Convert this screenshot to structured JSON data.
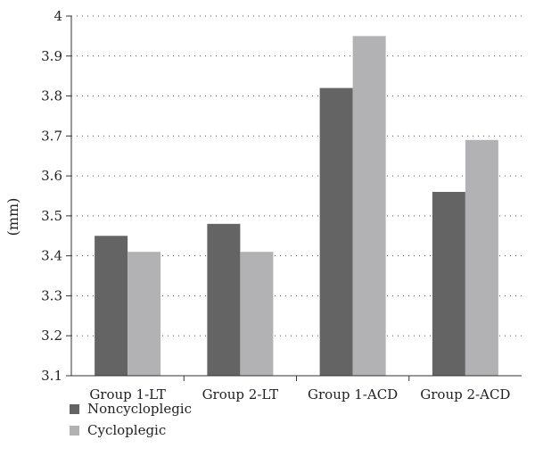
{
  "chart_data": {
    "type": "bar",
    "categories": [
      "Group 1-LT",
      "Group 2-LT",
      "Group 1-ACD",
      "Group 2-ACD"
    ],
    "series": [
      {
        "name": "Noncycloplegic",
        "color": "#646464",
        "values": [
          3.45,
          3.48,
          3.82,
          3.56
        ]
      },
      {
        "name": "Cycloplegic",
        "color": "#b2b2b4",
        "values": [
          3.41,
          3.41,
          3.95,
          3.69
        ]
      }
    ],
    "title": "",
    "xlabel": "",
    "ylabel": "(mm)",
    "ylim": [
      3.1,
      4.0
    ],
    "yticks": [
      "3.1",
      "3.2",
      "3.3",
      "3.4",
      "3.5",
      "3.6",
      "3.7",
      "3.8",
      "3.9",
      "4"
    ],
    "grid": true,
    "legend": "bottom-left"
  }
}
